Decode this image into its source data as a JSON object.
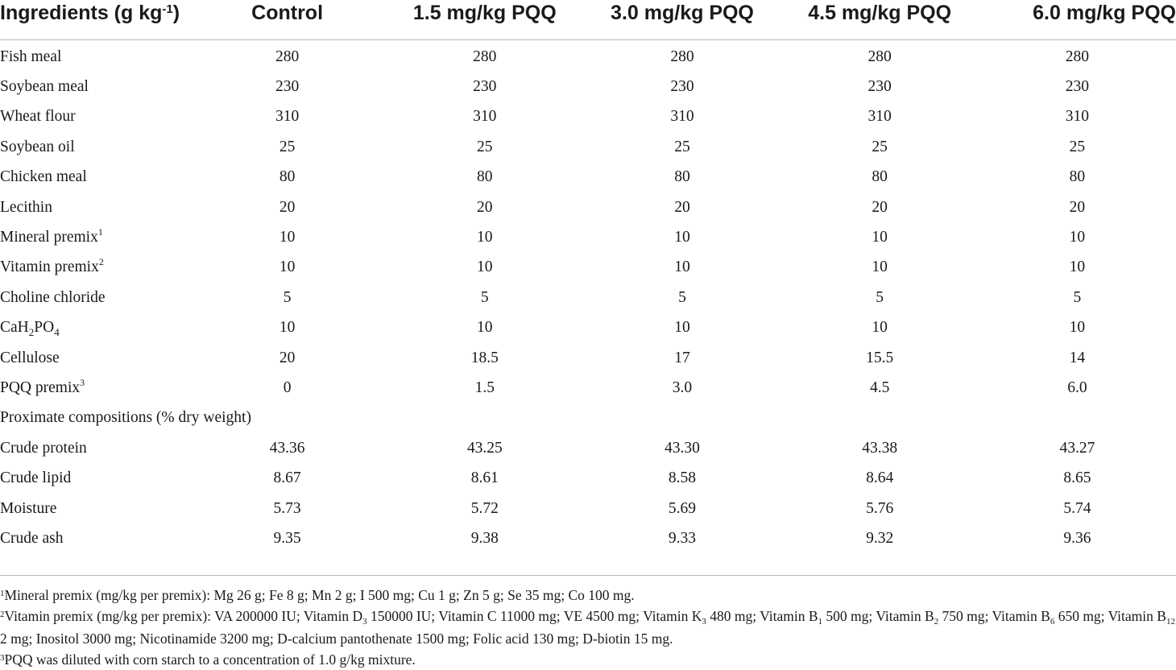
{
  "table": {
    "header": {
      "ingredients": "Ingredients (g kg",
      "ingredients_exp": "-1",
      "ingredients_close": ")",
      "columns": [
        "Control",
        "1.5 mg/kg PQQ",
        "3.0 mg/kg PQQ",
        "4.5 mg/kg PQQ",
        "6.0 mg/kg PQQ"
      ]
    },
    "rows": [
      {
        "label": "Fish meal",
        "values": [
          "280",
          "280",
          "280",
          "280",
          "280"
        ]
      },
      {
        "label": "Soybean meal",
        "values": [
          "230",
          "230",
          "230",
          "230",
          "230"
        ]
      },
      {
        "label": "Wheat flour",
        "values": [
          "310",
          "310",
          "310",
          "310",
          "310"
        ]
      },
      {
        "label": "Soybean oil",
        "values": [
          "25",
          "25",
          "25",
          "25",
          "25"
        ]
      },
      {
        "label": "Chicken meal",
        "values": [
          "80",
          "80",
          "80",
          "80",
          "80"
        ]
      },
      {
        "label": "Lecithin",
        "values": [
          "20",
          "20",
          "20",
          "20",
          "20"
        ]
      },
      {
        "label": "Mineral premix",
        "sup": "1",
        "values": [
          "10",
          "10",
          "10",
          "10",
          "10"
        ]
      },
      {
        "label": "Vitamin premix",
        "sup": "2",
        "values": [
          "10",
          "10",
          "10",
          "10",
          "10"
        ]
      },
      {
        "label": "Choline chloride",
        "values": [
          "5",
          "5",
          "5",
          "5",
          "5"
        ]
      },
      {
        "label_parts": [
          "CaH",
          "2",
          "PO",
          "4"
        ],
        "values": [
          "10",
          "10",
          "10",
          "10",
          "10"
        ]
      },
      {
        "label": "Cellulose",
        "values": [
          "20",
          "18.5",
          "17",
          "15.5",
          "14"
        ]
      },
      {
        "label": "PQQ premix",
        "sup": "3",
        "values": [
          "0",
          "1.5",
          "3.0",
          "4.5",
          "6.0"
        ]
      }
    ],
    "section_label": "Proximate compositions (% dry weight)",
    "rows2": [
      {
        "label": "Crude protein",
        "values": [
          "43.36",
          "43.25",
          "43.30",
          "43.38",
          "43.27"
        ]
      },
      {
        "label": "Crude lipid",
        "values": [
          "8.67",
          "8.61",
          "8.58",
          "8.64",
          "8.65"
        ]
      },
      {
        "label": "Moisture",
        "values": [
          "5.73",
          "5.72",
          "5.69",
          "5.76",
          "5.74"
        ]
      },
      {
        "label": "Crude ash",
        "values": [
          "9.35",
          "9.38",
          "9.33",
          "9.32",
          "9.36"
        ]
      }
    ]
  },
  "footnotes": {
    "n1_mark": "1",
    "n1_text": "Mineral premix (mg/kg per premix): Mg 26 g; Fe 8 g; Mn 2 g; I 500 mg; Cu 1 g; Zn 5 g; Se 35 mg; Co 100 mg.",
    "n2_mark": "2",
    "n2_parts": [
      "Vitamin premix (mg/kg per premix): VA 200000 IU; Vitamin D",
      "3",
      " 150000 IU; Vitamin C 11000 mg; VE 4500 mg; Vitamin K",
      "3",
      " 480 mg; Vitamin B",
      "1",
      " 500 mg; Vitamin B",
      "2",
      " 750 mg; Vitamin B",
      "6",
      " 650 mg; Vitamin B",
      "12",
      " 2 mg; Inositol 3000 mg; Nicotinamide 3200 mg; D-calcium pantothenate 1500 mg; Folic acid 130 mg; D-biotin 15 mg."
    ],
    "n3_mark": "3",
    "n3_text": "PQQ was diluted with corn starch to a concentration of 1.0 g/kg mixture."
  }
}
